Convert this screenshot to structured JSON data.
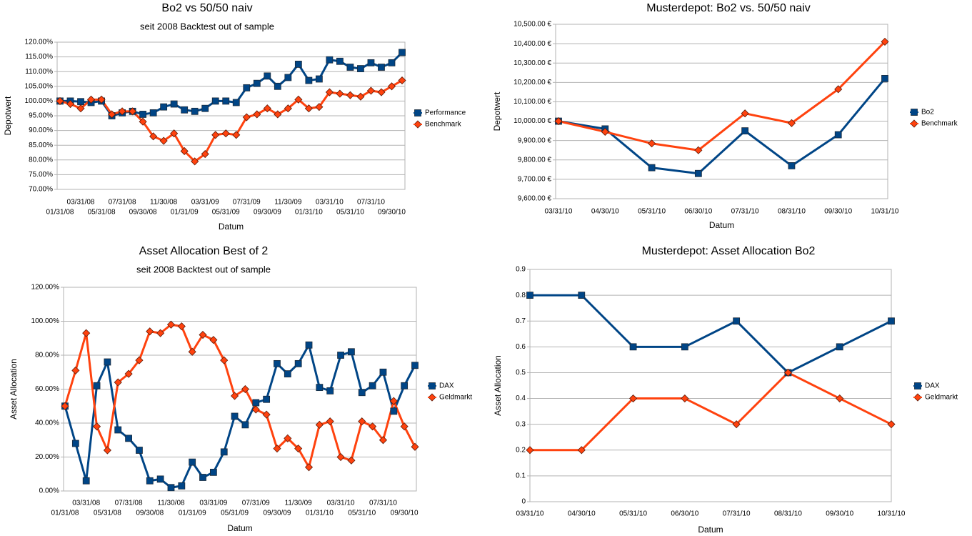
{
  "chart_data": [
    {
      "type": "line",
      "title": "Bo2 vs 50/50 naiv",
      "subtitle": "seit 2008 Backtest out of sample",
      "x_label": "Datum",
      "y_label": "Depotwert",
      "categories": [
        "01/31/08",
        null,
        "03/31/08",
        null,
        "05/31/08",
        null,
        "07/31/08",
        null,
        "09/30/08",
        null,
        "11/30/08",
        null,
        "01/31/09",
        null,
        "03/31/09",
        null,
        "05/31/09",
        null,
        "07/31/09",
        null,
        "09/30/09",
        null,
        "11/30/09",
        null,
        "01/31/10",
        null,
        "03/31/10",
        null,
        "05/31/10",
        null,
        "07/31/10",
        null,
        "09/30/10",
        null
      ],
      "series": [
        {
          "name": "Performance",
          "color": "#004586",
          "marker": "square",
          "values": [
            100,
            100,
            99.8,
            99.5,
            100,
            95,
            96,
            96.5,
            95.5,
            96,
            98,
            99,
            97,
            96.5,
            97.5,
            100,
            100,
            99.5,
            104.5,
            106,
            108.5,
            105,
            108,
            112.5,
            107,
            107.5,
            114,
            113.5,
            111.5,
            111,
            113,
            111.5,
            113,
            116.5
          ]
        },
        {
          "name": "Benchmark",
          "color": "#ff420e",
          "marker": "diamond",
          "values": [
            100,
            99,
            97.5,
            100.5,
            100.5,
            95.5,
            96.5,
            96.5,
            93,
            88,
            86.5,
            89,
            83,
            79.5,
            82,
            88.5,
            89,
            88.5,
            94.5,
            95.5,
            97.5,
            95.5,
            97.5,
            100.5,
            97.5,
            98,
            103,
            102.5,
            102,
            101.5,
            103.5,
            103,
            105,
            107
          ]
        }
      ],
      "ylim": [
        70,
        120
      ],
      "yticks": [
        {
          "value": 70,
          "label": "70.00%"
        },
        {
          "value": 75,
          "label": "75.00%"
        },
        {
          "value": 80,
          "label": "80.00%"
        },
        {
          "value": 85,
          "label": "85.00%"
        },
        {
          "value": 90,
          "label": "90.00%"
        },
        {
          "value": 95,
          "label": "95.00%"
        },
        {
          "value": 100,
          "label": "100.00%"
        },
        {
          "value": 105,
          "label": "105.00%"
        },
        {
          "value": 110,
          "label": "110.00%"
        },
        {
          "value": 115,
          "label": "115.00%"
        },
        {
          "value": 120,
          "label": "120.00%"
        }
      ],
      "grid": true,
      "legend": "right"
    },
    {
      "type": "line",
      "title": "Musterdepot: Bo2 vs. 50/50 naiv",
      "x_label": "Datum",
      "y_label": "Depotwert",
      "categories": [
        "03/31/10",
        "04/30/10",
        "05/31/10",
        "06/30/10",
        "07/31/10",
        "08/31/10",
        "09/30/10",
        "10/31/10"
      ],
      "series": [
        {
          "name": "Bo2",
          "color": "#004586",
          "marker": "square",
          "values": [
            10000,
            9960,
            9760,
            9730,
            9950,
            9770,
            9930,
            10220
          ]
        },
        {
          "name": "Benchmark",
          "color": "#ff420e",
          "marker": "diamond",
          "values": [
            10000,
            9945,
            9885,
            9850,
            10040,
            9990,
            10165,
            10410
          ]
        }
      ],
      "ylim": [
        9600,
        10500
      ],
      "yticks": [
        {
          "value": 9600,
          "label": "9,600.00 €"
        },
        {
          "value": 9700,
          "label": "9,700.00 €"
        },
        {
          "value": 9800,
          "label": "9,800.00 €"
        },
        {
          "value": 9900,
          "label": "9,900.00 €"
        },
        {
          "value": 10000,
          "label": "10,000.00 €"
        },
        {
          "value": 10100,
          "label": "10,100.00 €"
        },
        {
          "value": 10200,
          "label": "10,200.00 €"
        },
        {
          "value": 10300,
          "label": "10,300.00 €"
        },
        {
          "value": 10400,
          "label": "10,400.00 €"
        },
        {
          "value": 10500,
          "label": "10,500.00 €"
        }
      ],
      "grid": true,
      "legend": "right"
    },
    {
      "type": "line",
      "title": "Asset Allocation Best of 2",
      "subtitle": "seit 2008 Backtest out of sample",
      "x_label": "Datum",
      "y_label": "Asset Allocation",
      "categories": [
        "01/31/08",
        null,
        "03/31/08",
        null,
        "05/31/08",
        null,
        "07/31/08",
        null,
        "09/30/08",
        null,
        "11/30/08",
        null,
        "01/31/09",
        null,
        "03/31/09",
        null,
        "05/31/09",
        null,
        "07/31/09",
        null,
        "09/30/09",
        null,
        "11/30/09",
        null,
        "01/31/10",
        null,
        "03/31/10",
        null,
        "05/31/10",
        null,
        "07/31/10",
        null,
        "09/30/10",
        null
      ],
      "series": [
        {
          "name": "DAX",
          "color": "#004586",
          "marker": "square",
          "values": [
            50,
            28,
            6,
            62,
            76,
            36,
            31,
            24,
            6,
            7,
            2,
            3,
            17,
            8,
            11,
            23,
            44,
            39,
            52,
            54,
            75,
            69,
            75,
            86,
            61,
            59,
            80,
            82,
            58,
            62,
            70,
            47,
            62,
            74
          ]
        },
        {
          "name": "Geldmarkt",
          "color": "#ff420e",
          "marker": "diamond",
          "values": [
            50,
            71,
            93,
            38,
            24,
            64,
            69,
            77,
            94,
            93,
            98,
            97,
            82,
            92,
            89,
            77,
            56,
            60,
            48,
            45,
            25,
            31,
            25,
            14,
            39,
            41,
            20,
            18,
            41,
            38,
            30,
            53,
            38,
            26
          ]
        }
      ],
      "ylim": [
        0,
        120
      ],
      "yticks": [
        {
          "value": 0,
          "label": "0.00%"
        },
        {
          "value": 20,
          "label": "20.00%"
        },
        {
          "value": 40,
          "label": "40.00%"
        },
        {
          "value": 60,
          "label": "60.00%"
        },
        {
          "value": 80,
          "label": "80.00%"
        },
        {
          "value": 100,
          "label": "100.00%"
        },
        {
          "value": 120,
          "label": "120.00%"
        }
      ],
      "grid": true,
      "legend": "right"
    },
    {
      "type": "line",
      "title": "Musterdepot: Asset Allocation Bo2",
      "x_label": "Datum",
      "y_label": "Asset Allocation",
      "categories": [
        "03/31/10",
        "04/30/10",
        "05/31/10",
        "06/30/10",
        "07/31/10",
        "08/31/10",
        "09/30/10",
        "10/31/10"
      ],
      "series": [
        {
          "name": "DAX",
          "color": "#004586",
          "marker": "square",
          "values": [
            0.8,
            0.8,
            0.6,
            0.6,
            0.7,
            0.5,
            0.6,
            0.7
          ]
        },
        {
          "name": "Geldmarkt",
          "color": "#ff420e",
          "marker": "diamond",
          "values": [
            0.2,
            0.2,
            0.4,
            0.4,
            0.3,
            0.5,
            0.4,
            0.3
          ]
        }
      ],
      "ylim": [
        0,
        0.9
      ],
      "yticks": [
        0,
        0.1,
        0.2,
        0.3,
        0.4,
        0.5,
        0.6,
        0.7,
        0.8,
        0.9
      ],
      "grid": true,
      "legend": "right"
    }
  ]
}
